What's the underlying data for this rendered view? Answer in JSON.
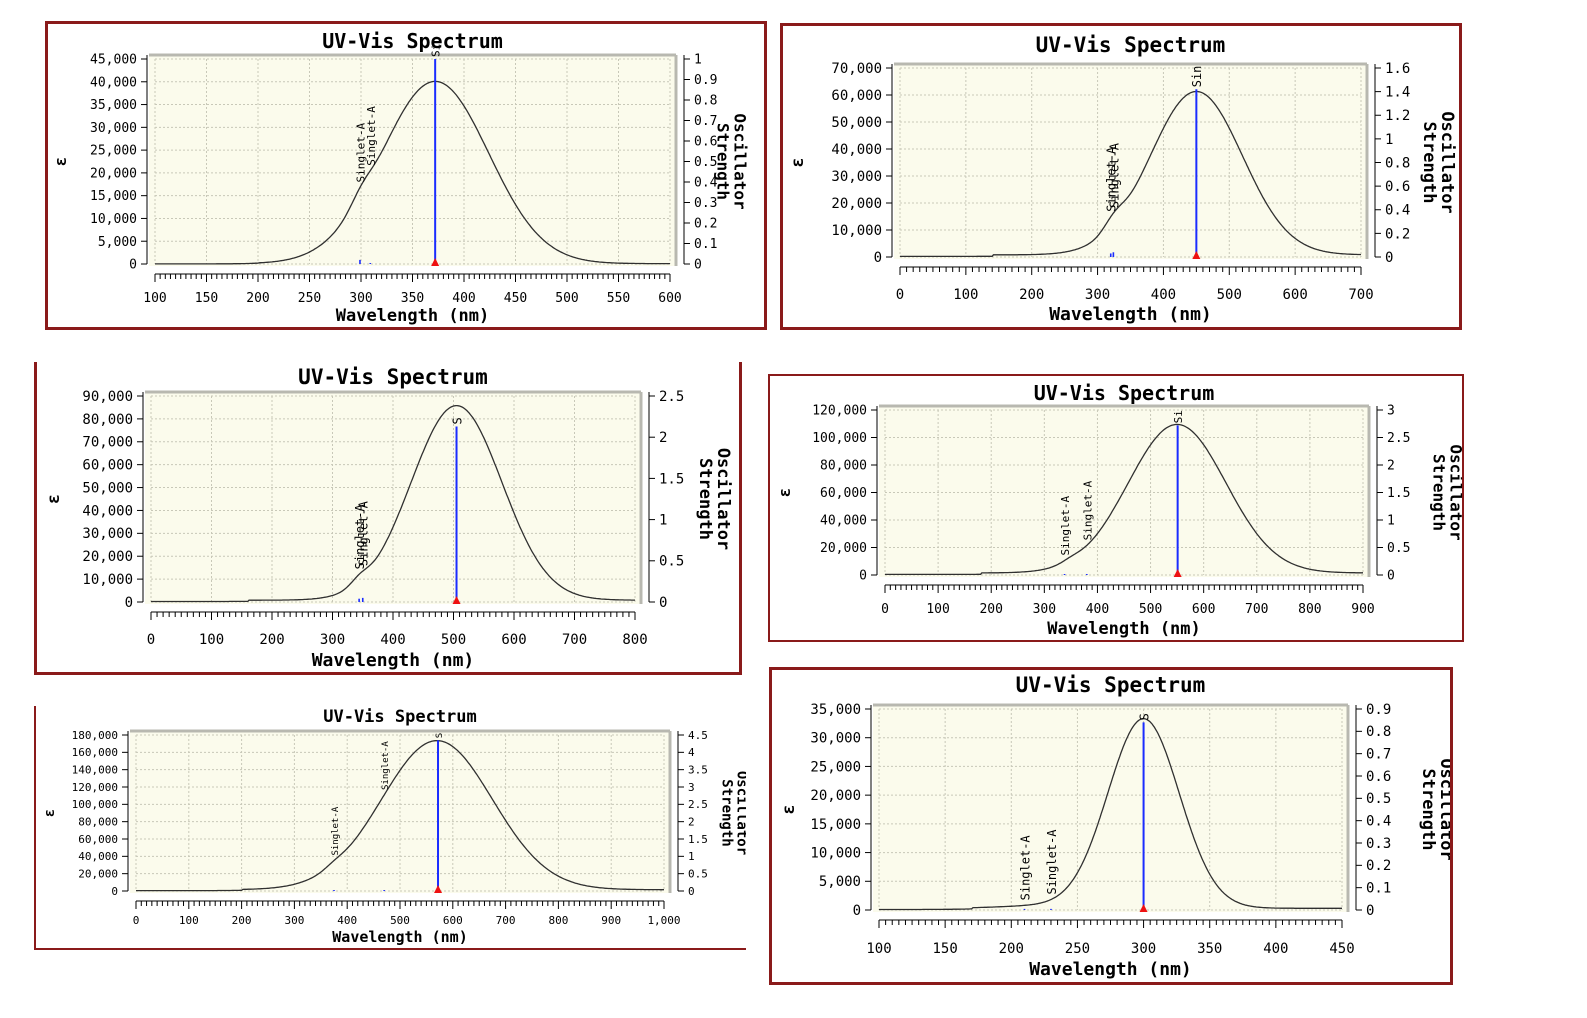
{
  "colors": {
    "frame": "#8a1a1a",
    "plot_background": "#fbfbec",
    "curve": "#303030",
    "stick": "#1a2cff",
    "marker": "#ee1111"
  },
  "chart_data": [
    {
      "type": "line",
      "title": "UV-Vis Spectrum",
      "xlabel": "Wavelength (nm)",
      "ylabel": "ε",
      "y2label": "Oscillator Strength",
      "xlim": [
        100,
        600
      ],
      "ylim": [
        0,
        45000
      ],
      "y2lim": [
        0,
        1
      ],
      "xticks": [
        100,
        150,
        200,
        250,
        300,
        350,
        400,
        450,
        500,
        550,
        600
      ],
      "xtick_labels": [
        "100",
        "150",
        "200",
        "250",
        "300",
        "350",
        "400",
        "450",
        "500",
        "550",
        "600"
      ],
      "yticks": [
        0,
        5000,
        10000,
        15000,
        20000,
        25000,
        30000,
        35000,
        40000,
        45000
      ],
      "ytick_labels": [
        "0",
        "5,000",
        "10,000",
        "15,000",
        "20,000",
        "25,000",
        "30,000",
        "35,000",
        "40,000",
        "45,000"
      ],
      "y2ticks": [
        0,
        0.1,
        0.2,
        0.3,
        0.4,
        0.5,
        0.6,
        0.7,
        0.8,
        0.9,
        1
      ],
      "y2tick_labels": [
        "0",
        "0.1",
        "0.2",
        "0.3",
        "0.4",
        "0.5",
        "0.6",
        "0.7",
        "0.8",
        "0.9",
        "1"
      ],
      "grid": true,
      "spectrum": {
        "peaks": [
          {
            "center": 372,
            "amp": 40000,
            "width": 52
          },
          {
            "center": 300,
            "amp": 1800,
            "width": 10
          }
        ],
        "baseline": 80
      },
      "transitions": [
        {
          "x": 372,
          "f": 1.0,
          "label": "Sin",
          "main": true
        },
        {
          "x": 299,
          "f": 0.02,
          "label": "Singlet-A",
          "main": false
        },
        {
          "x": 309,
          "f": 0.002,
          "label": "Singlet-A",
          "main": false
        }
      ]
    },
    {
      "type": "line",
      "title": "UV-Vis Spectrum",
      "xlabel": "Wavelength (nm)",
      "ylabel": "ε",
      "y2label": "Oscillator Strength",
      "xlim": [
        0,
        700
      ],
      "ylim": [
        0,
        70000
      ],
      "y2lim": [
        0,
        1.6
      ],
      "xticks": [
        0,
        100,
        200,
        300,
        400,
        500,
        600,
        700
      ],
      "xtick_labels": [
        "0",
        "100",
        "200",
        "300",
        "400",
        "500",
        "600",
        "700"
      ],
      "yticks": [
        0,
        10000,
        20000,
        30000,
        40000,
        50000,
        60000,
        70000
      ],
      "ytick_labels": [
        "0",
        "10,000",
        "20,000",
        "30,000",
        "40,000",
        "50,000",
        "60,000",
        "70,000"
      ],
      "y2ticks": [
        0,
        0.2,
        0.4,
        0.6,
        0.8,
        1,
        1.2,
        1.4,
        1.6
      ],
      "y2tick_labels": [
        "0",
        "0.2",
        "0.4",
        "0.6",
        "0.8",
        "1",
        "1.2",
        "1.4",
        "1.6"
      ],
      "grid": true,
      "spectrum": {
        "peaks": [
          {
            "center": 450,
            "amp": 60500,
            "width": 70
          },
          {
            "center": 325,
            "amp": 3500,
            "width": 15
          }
        ],
        "baseline": 800
      },
      "transitions": [
        {
          "x": 450,
          "f": 1.42,
          "label": "Sin",
          "main": true
        },
        {
          "x": 320,
          "f": 0.03,
          "label": "Singlet-A",
          "main": false
        },
        {
          "x": 324,
          "f": 0.04,
          "label": "Singlet-A",
          "main": false
        }
      ]
    },
    {
      "type": "line",
      "title": "UV-Vis Spectrum",
      "xlabel": "Wavelength (nm)",
      "ylabel": "ε",
      "y2label": "Oscillator Strength",
      "xlim": [
        0,
        800
      ],
      "ylim": [
        0,
        90000
      ],
      "y2lim": [
        0,
        2.5
      ],
      "xticks": [
        0,
        100,
        200,
        300,
        400,
        500,
        600,
        700,
        800
      ],
      "xtick_labels": [
        "0",
        "100",
        "200",
        "300",
        "400",
        "500",
        "600",
        "700",
        "800"
      ],
      "yticks": [
        0,
        10000,
        20000,
        30000,
        40000,
        50000,
        60000,
        70000,
        80000,
        90000
      ],
      "ytick_labels": [
        "0",
        "10,000",
        "20,000",
        "30,000",
        "40,000",
        "50,000",
        "60,000",
        "70,000",
        "80,000",
        "90,000"
      ],
      "y2ticks": [
        0,
        0.5,
        1,
        1.5,
        2,
        2.5
      ],
      "y2tick_labels": [
        "0",
        "0.5",
        "1",
        "1.5",
        "2",
        "2.5"
      ],
      "grid": true,
      "spectrum": {
        "peaks": [
          {
            "center": 505,
            "amp": 85000,
            "width": 75
          },
          {
            "center": 345,
            "amp": 2800,
            "width": 15
          }
        ],
        "baseline": 800
      },
      "transitions": [
        {
          "x": 505,
          "f": 2.13,
          "label": "S",
          "main": true
        },
        {
          "x": 344,
          "f": 0.04,
          "label": "Singlet-A",
          "main": false
        },
        {
          "x": 350,
          "f": 0.05,
          "label": "Singlet-A",
          "main": false
        }
      ]
    },
    {
      "type": "line",
      "title": "UV-Vis Spectrum",
      "xlabel": "Wavelength (nm)",
      "ylabel": "ε",
      "y2label": "Oscillator Strength",
      "xlim": [
        0,
        900
      ],
      "ylim": [
        0,
        120000
      ],
      "y2lim": [
        0,
        3
      ],
      "xticks": [
        0,
        100,
        200,
        300,
        400,
        500,
        600,
        700,
        800,
        900
      ],
      "xtick_labels": [
        "0",
        "100",
        "200",
        "300",
        "400",
        "500",
        "600",
        "700",
        "800",
        "900"
      ],
      "yticks": [
        0,
        20000,
        40000,
        60000,
        80000,
        100000,
        120000
      ],
      "ytick_labels": [
        "0",
        "20,000",
        "40,000",
        "60,000",
        "80,000",
        "100,000",
        "120,000"
      ],
      "y2ticks": [
        0,
        0.5,
        1,
        1.5,
        2,
        2.5,
        3
      ],
      "y2tick_labels": [
        "0",
        "0.5",
        "1",
        "1.5",
        "2",
        "2.5",
        "3"
      ],
      "grid": true,
      "spectrum": {
        "peaks": [
          {
            "center": 550,
            "amp": 108000,
            "width": 92
          },
          {
            "center": 350,
            "amp": 1800,
            "width": 18
          }
        ],
        "baseline": 1500
      },
      "transitions": [
        {
          "x": 551,
          "f": 2.72,
          "label": "Si",
          "main": true
        },
        {
          "x": 338,
          "f": 0.01,
          "label": "Singlet-A",
          "main": false
        },
        {
          "x": 380,
          "f": 0.01,
          "label": "Singlet-A",
          "main": false
        }
      ]
    },
    {
      "type": "line",
      "title": "UV-Vis Spectrum",
      "xlabel": "Wavelength (nm)",
      "ylabel": "ε",
      "y2label": "Oscillator Strength",
      "xlim": [
        0,
        1000
      ],
      "ylim": [
        0,
        180000
      ],
      "y2lim": [
        0,
        4.5
      ],
      "xticks": [
        0,
        100,
        200,
        300,
        400,
        500,
        600,
        700,
        800,
        900,
        1000
      ],
      "xtick_labels": [
        "0",
        "100",
        "200",
        "300",
        "400",
        "500",
        "600",
        "700",
        "800",
        "900",
        "1,000"
      ],
      "yticks": [
        0,
        20000,
        40000,
        60000,
        80000,
        100000,
        120000,
        140000,
        160000,
        180000
      ],
      "ytick_labels": [
        "0",
        "20,000",
        "40,000",
        "60,000",
        "80,000",
        "100,000",
        "120,000",
        "140,000",
        "160,000",
        "180,000"
      ],
      "y2ticks": [
        0,
        0.5,
        1,
        1.5,
        2,
        2.5,
        3,
        3.5,
        4,
        4.5
      ],
      "y2tick_labels": [
        "0",
        "0.5",
        "1",
        "1.5",
        "2",
        "2.5",
        "3",
        "3.5",
        "4",
        "4.5"
      ],
      "grid": true,
      "spectrum": {
        "peaks": [
          {
            "center": 570,
            "amp": 172000,
            "width": 105
          },
          {
            "center": 375,
            "amp": 3000,
            "width": 18
          }
        ],
        "baseline": 1500
      },
      "transitions": [
        {
          "x": 572,
          "f": 4.35,
          "label": "S",
          "main": true
        },
        {
          "x": 375,
          "f": 0.02,
          "label": "Singlet-A",
          "main": false
        },
        {
          "x": 470,
          "f": 0.02,
          "label": "Singlet-A",
          "main": false
        }
      ]
    },
    {
      "type": "line",
      "title": "UV-Vis Spectrum",
      "xlabel": "Wavelength (nm)",
      "ylabel": "ε",
      "y2label": "Oscillator Strength",
      "xlim": [
        100,
        450
      ],
      "ylim": [
        0,
        35000
      ],
      "y2lim": [
        0,
        0.9
      ],
      "xticks": [
        100,
        150,
        200,
        250,
        300,
        350,
        400,
        450
      ],
      "xtick_labels": [
        "100",
        "150",
        "200",
        "250",
        "300",
        "350",
        "400",
        "450"
      ],
      "yticks": [
        0,
        5000,
        10000,
        15000,
        20000,
        25000,
        30000,
        35000
      ],
      "ytick_labels": [
        "0",
        "5,000",
        "10,000",
        "15,000",
        "20,000",
        "25,000",
        "30,000",
        "35,000"
      ],
      "y2ticks": [
        0,
        0.1,
        0.2,
        0.3,
        0.4,
        0.5,
        0.6,
        0.7,
        0.8,
        0.9
      ],
      "y2tick_labels": [
        "0",
        "0.1",
        "0.2",
        "0.3",
        "0.4",
        "0.5",
        "0.6",
        "0.7",
        "0.8",
        "0.9"
      ],
      "grid": true,
      "spectrum": {
        "peaks": [
          {
            "center": 300,
            "amp": 33000,
            "width": 27
          },
          {
            "center": 220,
            "amp": 400,
            "width": 30
          }
        ],
        "baseline": 300
      },
      "transitions": [
        {
          "x": 300,
          "f": 0.84,
          "label": "S",
          "main": true
        },
        {
          "x": 210,
          "f": 0.005,
          "label": "Singlet-A",
          "main": false
        },
        {
          "x": 230,
          "f": 0.005,
          "label": "Singlet-A",
          "main": false
        }
      ]
    }
  ]
}
